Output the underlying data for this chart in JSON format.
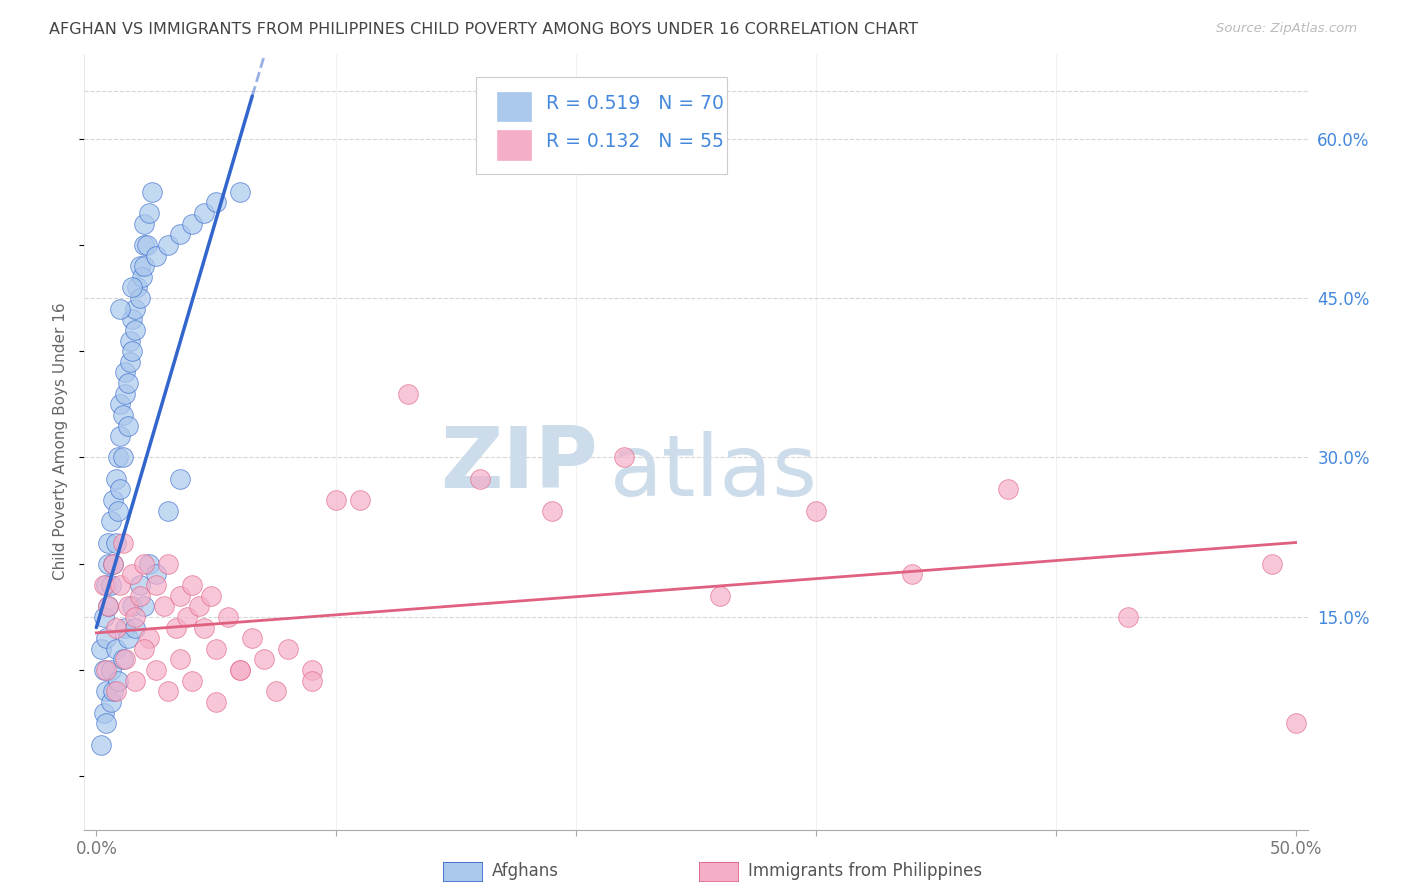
{
  "title": "AFGHAN VS IMMIGRANTS FROM PHILIPPINES CHILD POVERTY AMONG BOYS UNDER 16 CORRELATION CHART",
  "source": "Source: ZipAtlas.com",
  "ylabel": "Child Poverty Among Boys Under 16",
  "xlim": [
    -0.005,
    0.505
  ],
  "ylim": [
    -0.05,
    0.68
  ],
  "xtick_positions": [
    0.0,
    0.1,
    0.2,
    0.3,
    0.4,
    0.5
  ],
  "xticklabels": [
    "0.0%",
    "",
    "",
    "",
    "",
    "50.0%"
  ],
  "ytick_positions": [
    0.0,
    0.15,
    0.3,
    0.45,
    0.6
  ],
  "yticklabels_right": [
    "",
    "15.0%",
    "30.0%",
    "45.0%",
    "60.0%"
  ],
  "grid_color": "#cccccc",
  "background_color": "#ffffff",
  "color_afghan": "#aac8ec",
  "color_phil": "#f5aec8",
  "line_color_afghan": "#3366cc",
  "line_color_phil": "#e06080",
  "title_color": "#444444",
  "label_color_blue": "#4488dd",
  "watermark_zip_color": "#c8d8e8",
  "watermark_atlas_color": "#c8d8e8",
  "afghan_x": [
    0.002,
    0.003,
    0.003,
    0.004,
    0.004,
    0.005,
    0.005,
    0.005,
    0.006,
    0.006,
    0.007,
    0.007,
    0.008,
    0.008,
    0.009,
    0.009,
    0.01,
    0.01,
    0.01,
    0.011,
    0.011,
    0.012,
    0.012,
    0.013,
    0.013,
    0.014,
    0.014,
    0.015,
    0.015,
    0.016,
    0.016,
    0.017,
    0.018,
    0.018,
    0.019,
    0.02,
    0.02,
    0.021,
    0.022,
    0.023,
    0.003,
    0.004,
    0.006,
    0.008,
    0.012,
    0.015,
    0.018,
    0.022,
    0.03,
    0.035,
    0.002,
    0.004,
    0.006,
    0.007,
    0.009,
    0.011,
    0.013,
    0.016,
    0.02,
    0.025,
    0.01,
    0.015,
    0.02,
    0.025,
    0.03,
    0.035,
    0.04,
    0.045,
    0.05,
    0.06
  ],
  "afghan_y": [
    0.12,
    0.1,
    0.15,
    0.13,
    0.18,
    0.16,
    0.2,
    0.22,
    0.18,
    0.24,
    0.2,
    0.26,
    0.22,
    0.28,
    0.25,
    0.3,
    0.27,
    0.32,
    0.35,
    0.3,
    0.34,
    0.36,
    0.38,
    0.33,
    0.37,
    0.39,
    0.41,
    0.4,
    0.43,
    0.42,
    0.44,
    0.46,
    0.45,
    0.48,
    0.47,
    0.5,
    0.52,
    0.5,
    0.53,
    0.55,
    0.06,
    0.08,
    0.1,
    0.12,
    0.14,
    0.16,
    0.18,
    0.2,
    0.25,
    0.28,
    0.03,
    0.05,
    0.07,
    0.08,
    0.09,
    0.11,
    0.13,
    0.14,
    0.16,
    0.19,
    0.44,
    0.46,
    0.48,
    0.49,
    0.5,
    0.51,
    0.52,
    0.53,
    0.54,
    0.55
  ],
  "phil_x": [
    0.003,
    0.005,
    0.007,
    0.008,
    0.01,
    0.011,
    0.013,
    0.015,
    0.016,
    0.018,
    0.02,
    0.022,
    0.025,
    0.028,
    0.03,
    0.033,
    0.035,
    0.038,
    0.04,
    0.043,
    0.045,
    0.048,
    0.05,
    0.055,
    0.06,
    0.065,
    0.07,
    0.08,
    0.09,
    0.1,
    0.004,
    0.008,
    0.012,
    0.016,
    0.02,
    0.025,
    0.03,
    0.035,
    0.04,
    0.05,
    0.06,
    0.075,
    0.09,
    0.11,
    0.13,
    0.16,
    0.19,
    0.22,
    0.26,
    0.3,
    0.34,
    0.38,
    0.43,
    0.49,
    0.5
  ],
  "phil_y": [
    0.18,
    0.16,
    0.2,
    0.14,
    0.18,
    0.22,
    0.16,
    0.19,
    0.15,
    0.17,
    0.2,
    0.13,
    0.18,
    0.16,
    0.2,
    0.14,
    0.17,
    0.15,
    0.18,
    0.16,
    0.14,
    0.17,
    0.12,
    0.15,
    0.1,
    0.13,
    0.11,
    0.12,
    0.1,
    0.26,
    0.1,
    0.08,
    0.11,
    0.09,
    0.12,
    0.1,
    0.08,
    0.11,
    0.09,
    0.07,
    0.1,
    0.08,
    0.09,
    0.26,
    0.36,
    0.28,
    0.25,
    0.3,
    0.17,
    0.25,
    0.19,
    0.27,
    0.15,
    0.2,
    0.05
  ],
  "trend_afghan": [
    0.0,
    0.065,
    0.14,
    0.64
  ],
  "trend_phil": [
    0.0,
    0.5,
    0.135,
    0.22
  ]
}
